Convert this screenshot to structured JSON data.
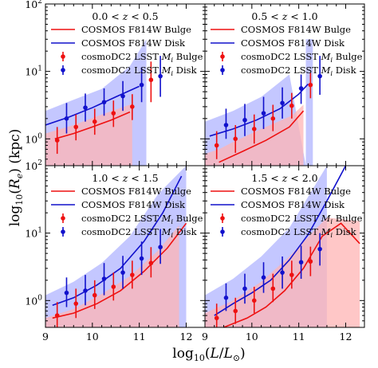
{
  "figure": {
    "xlabel": "log10(L/L⊙)",
    "ylabel": "log10(Re) (kpc)",
    "x_ticks": [
      "9",
      "10",
      "11",
      "12"
    ],
    "y_ticks": [
      "10^0",
      "10^1",
      "10^2"
    ],
    "colors": {
      "bulge": "#ee1111",
      "disk": "#1111cc",
      "bulge_band": "#ffb4b4",
      "disk_band": "#b0b4ff",
      "overlap": "#c89ac4"
    }
  },
  "legend": {
    "cosmos_bulge": "COSMOS F814W Bulge",
    "cosmos_disk": "COSMOS F814W Disk",
    "cosmodc2_bulge": "cosmoDC2 LSST Mi Bulge",
    "cosmodc2_disk": "cosmoDC2 LSST Mi Disk"
  },
  "chart_data": [
    {
      "type": "line",
      "panel_title": "0.0 < z < 0.5",
      "xlim": [
        9.0,
        12.4
      ],
      "ylim": [
        0.4,
        100
      ],
      "yscale": "log",
      "legend_position": "top-left",
      "series": [
        {
          "name": "COSMOS F814W Bulge",
          "kind": "line",
          "x": [
            9.2,
            9.6,
            10.0,
            10.4,
            10.8
          ],
          "y": [
            1.0,
            1.2,
            1.5,
            1.9,
            2.5
          ]
        },
        {
          "name": "COSMOS F814W Disk",
          "kind": "line",
          "x": [
            9.0,
            9.5,
            10.0,
            10.5,
            11.0
          ],
          "y": [
            1.6,
            2.1,
            2.9,
            4.2,
            6.0
          ]
        },
        {
          "name": "cosmoDC2 LSST Mi Bulge",
          "kind": "points",
          "x": [
            9.25,
            9.65,
            10.05,
            10.45,
            10.85,
            11.25
          ],
          "y": [
            0.95,
            1.5,
            1.8,
            2.4,
            3.0,
            7.5
          ],
          "ylow": [
            0.6,
            0.95,
            1.15,
            1.5,
            1.9,
            3.5
          ],
          "yhigh": [
            1.5,
            2.3,
            2.8,
            3.7,
            4.6,
            14.0
          ]
        },
        {
          "name": "cosmoDC2 LSST Mi Disk",
          "kind": "points",
          "x": [
            9.45,
            9.85,
            10.25,
            10.65,
            11.05,
            11.45
          ],
          "y": [
            2.0,
            2.9,
            3.5,
            4.3,
            6.3,
            8.5
          ],
          "ylow": [
            1.2,
            1.8,
            2.2,
            2.6,
            3.5,
            4.2
          ],
          "yhigh": [
            3.4,
            4.7,
            5.6,
            7.2,
            11.5,
            17.0
          ]
        },
        {
          "name": "",
          "kind": "band",
          "color": "disk_band",
          "x": [
            9.0,
            9.6,
            10.2,
            10.8,
            11.0,
            11.0,
            11.15,
            11.15,
            11.15,
            11.15,
            10.8,
            10.2,
            9.6,
            9.0
          ],
          "y": [
            0.4,
            0.4,
            0.4,
            0.4,
            0.4,
            0.4,
            0.4,
            0.4,
            30,
            30,
            12,
            5.5,
            3.8,
            2.6
          ]
        },
        {
          "name": "",
          "kind": "band",
          "color": "bulge_band",
          "x": [
            9.0,
            9.6,
            10.2,
            10.85,
            10.85,
            10.2,
            9.6,
            9.0
          ],
          "y": [
            0.4,
            0.4,
            0.4,
            0.4,
            3.3,
            2.3,
            1.6,
            1.2
          ]
        }
      ]
    },
    {
      "type": "line",
      "panel_title": "0.5 < z < 1.0",
      "xlim": [
        9.0,
        12.4
      ],
      "ylim": [
        0.4,
        100
      ],
      "yscale": "log",
      "legend_position": "top-left",
      "series": [
        {
          "name": "COSMOS F814W Bulge",
          "kind": "line",
          "x": [
            9.3,
            9.8,
            10.3,
            10.8,
            11.1
          ],
          "y": [
            0.45,
            0.65,
            0.95,
            1.5,
            2.6
          ]
        },
        {
          "name": "COSMOS F814W Disk",
          "kind": "line",
          "x": [
            9.1,
            9.6,
            10.1,
            10.6,
            11.0,
            11.2
          ],
          "y": [
            1.1,
            1.4,
            1.9,
            2.8,
            4.6,
            6.5
          ]
        },
        {
          "name": "cosmoDC2 LSST Mi Bulge",
          "kind": "points",
          "x": [
            9.25,
            9.65,
            10.05,
            10.45,
            10.85,
            11.25
          ],
          "y": [
            0.8,
            1.0,
            1.4,
            2.0,
            3.1,
            6.3
          ],
          "ylow": [
            0.5,
            0.62,
            0.85,
            1.3,
            2.0,
            4.0
          ],
          "yhigh": [
            1.3,
            1.6,
            2.3,
            3.2,
            4.8,
            9.5
          ]
        },
        {
          "name": "cosmoDC2 LSST Mi Disk",
          "kind": "points",
          "x": [
            9.45,
            9.85,
            10.25,
            10.65,
            11.05,
            11.45
          ],
          "y": [
            1.6,
            1.9,
            2.4,
            3.4,
            5.6,
            8.5
          ],
          "ylow": [
            1.0,
            1.1,
            1.4,
            2.0,
            3.3,
            4.5
          ],
          "yhigh": [
            2.8,
            3.3,
            4.2,
            5.8,
            9.0,
            17.0
          ]
        },
        {
          "name": "",
          "kind": "band",
          "color": "disk_band",
          "x": [
            9.0,
            9.6,
            10.2,
            10.8,
            11.15,
            11.15,
            11.3,
            11.3,
            11.15,
            10.8,
            10.2,
            9.6,
            9.0
          ],
          "y": [
            0.4,
            0.4,
            0.4,
            0.4,
            0.4,
            30,
            30,
            0.4,
            0.4,
            9,
            4.2,
            2.6,
            1.8
          ]
        },
        {
          "name": "",
          "kind": "band",
          "color": "bulge_band",
          "x": [
            9.0,
            9.6,
            10.2,
            10.85,
            11.1,
            11.1,
            10.85,
            10.2,
            9.6,
            9.3,
            9.0
          ],
          "y": [
            0.4,
            0.4,
            0.4,
            0.4,
            0.4,
            3.2,
            2.2,
            1.4,
            0.9,
            0.7,
            0.6
          ]
        }
      ]
    },
    {
      "type": "line",
      "panel_title": "1.0 < z < 1.5",
      "xlim": [
        9.0,
        12.4
      ],
      "ylim": [
        0.4,
        100
      ],
      "yscale": "log",
      "legend_position": "top-left",
      "series": [
        {
          "name": "COSMOS F814W Bulge",
          "kind": "line",
          "x": [
            9.15,
            9.6,
            10.1,
            10.6,
            11.1,
            11.6,
            12.0
          ],
          "y": [
            0.55,
            0.65,
            0.9,
            1.4,
            2.7,
            6.0,
            14.0
          ]
        },
        {
          "name": "COSMOS F814W Disk",
          "kind": "line",
          "x": [
            9.15,
            9.6,
            10.1,
            10.6,
            11.1,
            11.5,
            11.9
          ],
          "y": [
            0.85,
            1.1,
            1.7,
            3.0,
            7.5,
            20.0,
            70.0
          ]
        },
        {
          "name": "cosmoDC2 LSST Mi Bulge",
          "kind": "points",
          "x": [
            9.25,
            9.65,
            10.05,
            10.45,
            10.85,
            11.25
          ],
          "y": [
            0.6,
            0.9,
            1.2,
            1.6,
            2.4,
            3.6
          ],
          "ylow": [
            0.4,
            0.55,
            0.75,
            1.0,
            1.5,
            2.2
          ],
          "yhigh": [
            0.95,
            1.5,
            2.0,
            2.6,
            3.9,
            6.2
          ]
        },
        {
          "name": "cosmoDC2 LSST Mi Disk",
          "kind": "points",
          "x": [
            9.45,
            9.85,
            10.25,
            10.65,
            11.05,
            11.45
          ],
          "y": [
            1.3,
            1.4,
            2.1,
            2.6,
            4.2,
            6.2
          ],
          "ylow": [
            0.8,
            0.85,
            1.2,
            1.5,
            2.4,
            3.5
          ],
          "yhigh": [
            2.2,
            2.4,
            3.6,
            4.6,
            7.5,
            11.5
          ]
        },
        {
          "name": "",
          "kind": "band",
          "color": "disk_band",
          "x": [
            9.0,
            9.6,
            10.2,
            10.8,
            11.4,
            12.0,
            12.0,
            11.4,
            10.8,
            10.2,
            9.6,
            9.0
          ],
          "y": [
            0.4,
            0.4,
            0.4,
            0.4,
            0.4,
            0.4,
            100,
            38,
            9,
            3.6,
            1.9,
            1.2
          ]
        },
        {
          "name": "",
          "kind": "band",
          "color": "bulge_band",
          "x": [
            9.0,
            9.6,
            10.2,
            10.8,
            11.4,
            11.85,
            11.85,
            11.4,
            10.8,
            10.2,
            9.6,
            9.0
          ],
          "y": [
            0.4,
            0.4,
            0.4,
            0.4,
            0.4,
            0.4,
            13,
            5.5,
            2.3,
            1.25,
            0.75,
            0.55
          ]
        }
      ]
    },
    {
      "type": "line",
      "panel_title": "1.5 < z < 2.0",
      "xlim": [
        9.0,
        12.4
      ],
      "ylim": [
        0.4,
        100
      ],
      "yscale": "log",
      "legend_position": "top-left",
      "series": [
        {
          "name": "COSMOS F814W Bulge",
          "kind": "line",
          "x": [
            9.4,
            9.9,
            10.3,
            10.7,
            11.1,
            11.5,
            11.9,
            12.3
          ],
          "y": [
            0.4,
            0.55,
            0.8,
            1.4,
            3.0,
            9.0,
            14.0,
            7.0
          ]
        },
        {
          "name": "COSMOS F814W Disk",
          "kind": "line",
          "x": [
            9.2,
            9.6,
            10.0,
            10.4,
            10.8,
            11.2,
            11.6,
            12.0
          ],
          "y": [
            0.6,
            0.9,
            1.3,
            2.0,
            4.0,
            9.5,
            30.0,
            100.0
          ]
        },
        {
          "name": "cosmoDC2 LSST Mi Bulge",
          "kind": "points",
          "x": [
            9.25,
            9.65,
            10.05,
            10.45,
            10.85,
            11.25
          ],
          "y": [
            0.55,
            0.7,
            1.0,
            1.5,
            2.4,
            3.8
          ],
          "ylow": [
            0.4,
            0.45,
            0.65,
            0.95,
            1.5,
            2.3
          ],
          "yhigh": [
            0.9,
            1.1,
            1.6,
            2.5,
            3.9,
            6.3
          ]
        },
        {
          "name": "cosmoDC2 LSST Mi Disk",
          "kind": "points",
          "x": [
            9.45,
            9.85,
            10.25,
            10.65,
            11.05,
            11.45
          ],
          "y": [
            1.1,
            1.5,
            2.2,
            2.6,
            3.7,
            5.8
          ],
          "ylow": [
            0.7,
            0.9,
            1.3,
            1.5,
            2.1,
            3.3
          ],
          "yhigh": [
            1.8,
            2.5,
            3.7,
            4.5,
            6.5,
            10.0
          ]
        },
        {
          "name": "",
          "kind": "band",
          "color": "disk_band",
          "x": [
            9.0,
            9.6,
            10.2,
            10.8,
            11.6,
            11.6,
            10.8,
            10.2,
            9.6,
            9.0
          ],
          "y": [
            0.4,
            0.4,
            0.4,
            0.4,
            0.4,
            100,
            12,
            4.5,
            2.1,
            1.2
          ]
        },
        {
          "name": "",
          "kind": "band",
          "color": "bulge_band",
          "x": [
            9.0,
            9.6,
            10.2,
            10.8,
            11.6,
            12.3,
            12.3,
            11.6,
            10.8,
            10.2,
            9.6,
            9.0
          ],
          "y": [
            0.4,
            0.4,
            0.4,
            0.4,
            0.4,
            0.4,
            15,
            17,
            4.5,
            1.9,
            1.0,
            0.65
          ]
        }
      ]
    }
  ]
}
